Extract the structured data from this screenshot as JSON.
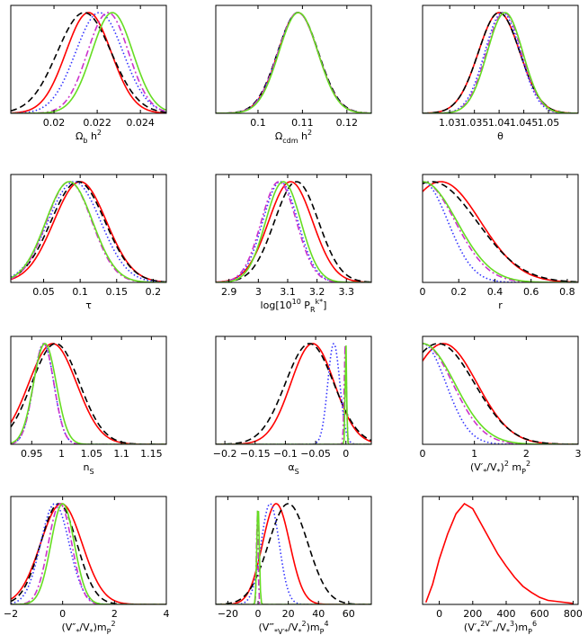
{
  "line_styles": [
    {
      "name": "red-solid",
      "color": "#ff0000",
      "dash": "none"
    },
    {
      "name": "black-dashed",
      "color": "#000000",
      "dash": "7,4"
    },
    {
      "name": "blue-dotted",
      "color": "#3333ff",
      "dash": "1.5,2.5"
    },
    {
      "name": "magenta-dashdot",
      "color": "#cc33cc",
      "dash": "7,3,2,3"
    },
    {
      "name": "green-solid",
      "color": "#66dd22",
      "dash": "none"
    }
  ],
  "chart_data": [
    {
      "type": "line",
      "id": "omega-b",
      "xlabel": "Ω_b h^2",
      "xlim": [
        0.018,
        0.0252
      ],
      "ticks": [
        {
          "v": 0.02,
          "label": "0.02"
        },
        {
          "v": 0.022,
          "label": "0.022"
        },
        {
          "v": 0.024,
          "label": "0.024"
        }
      ],
      "series": [
        {
          "style": "red-solid",
          "gauss": [
            0.0216,
            0.00105
          ]
        },
        {
          "style": "black-dashed",
          "gauss": [
            0.0214,
            0.00125
          ]
        },
        {
          "style": "blue-dotted",
          "gauss": [
            0.0221,
            0.0011
          ]
        },
        {
          "style": "magenta-dashdot",
          "gauss": [
            0.0225,
            0.00095
          ]
        },
        {
          "style": "green-solid",
          "gauss": [
            0.0227,
            0.00095
          ]
        }
      ]
    },
    {
      "type": "line",
      "id": "omega-cdm",
      "xlabel": "Ω_cdm h^2",
      "xlim": [
        0.0905,
        0.1255
      ],
      "ticks": [
        {
          "v": 0.1,
          "label": "0.1"
        },
        {
          "v": 0.11,
          "label": "0.11"
        },
        {
          "v": 0.12,
          "label": "0.12"
        }
      ],
      "series": [
        {
          "style": "red-solid",
          "gauss": [
            0.109,
            0.0045
          ]
        },
        {
          "style": "black-dashed",
          "gauss": [
            0.109,
            0.0046
          ]
        },
        {
          "style": "blue-dotted",
          "gauss": [
            0.109,
            0.0045
          ]
        },
        {
          "style": "magenta-dashdot",
          "gauss": [
            0.109,
            0.0045
          ]
        },
        {
          "style": "green-solid",
          "gauss": [
            0.1091,
            0.0044
          ]
        }
      ]
    },
    {
      "type": "line",
      "id": "theta",
      "xlabel": "θ",
      "xlim": [
        1.0245,
        1.056
      ],
      "ticks": [
        {
          "v": 1.03,
          "label": "1.03"
        },
        {
          "v": 1.035,
          "label": "1.035"
        },
        {
          "v": 1.04,
          "label": "1.04"
        },
        {
          "v": 1.045,
          "label": "1.045"
        },
        {
          "v": 1.05,
          "label": "1.05"
        }
      ],
      "series": [
        {
          "style": "red-solid",
          "gauss": [
            1.04,
            0.0042
          ]
        },
        {
          "style": "black-dashed",
          "gauss": [
            1.04,
            0.0042
          ]
        },
        {
          "style": "blue-dotted",
          "gauss": [
            1.0407,
            0.0036
          ]
        },
        {
          "style": "magenta-dashdot",
          "gauss": [
            1.041,
            0.0036
          ]
        },
        {
          "style": "green-solid",
          "gauss": [
            1.0412,
            0.0036
          ]
        }
      ]
    },
    {
      "type": "line",
      "id": "tau",
      "xlabel": "τ",
      "xlim": [
        0.005,
        0.218
      ],
      "ticks": [
        {
          "v": 0.05,
          "label": "0.05"
        },
        {
          "v": 0.1,
          "label": "0.1"
        },
        {
          "v": 0.15,
          "label": "0.15"
        },
        {
          "v": 0.2,
          "label": "0.2"
        }
      ],
      "series": [
        {
          "style": "red-solid",
          "gauss": [
            0.1,
            0.036
          ]
        },
        {
          "style": "black-dashed",
          "gauss": [
            0.097,
            0.037
          ]
        },
        {
          "style": "blue-dotted",
          "gauss": [
            0.092,
            0.036
          ]
        },
        {
          "style": "magenta-dashdot",
          "gauss": [
            0.085,
            0.031
          ]
        },
        {
          "style": "green-solid",
          "gauss": [
            0.085,
            0.032
          ]
        }
      ]
    },
    {
      "type": "line",
      "id": "log-pr",
      "xlabel": "log[10^10 P_R^k*]",
      "xlim": [
        2.855,
        3.385
      ],
      "ticks": [
        {
          "v": 2.9,
          "label": "2.9"
        },
        {
          "v": 3.0,
          "label": "3"
        },
        {
          "v": 3.1,
          "label": "3.1"
        },
        {
          "v": 3.2,
          "label": "3.2"
        },
        {
          "v": 3.3,
          "label": "3.3"
        }
      ],
      "series": [
        {
          "style": "red-solid",
          "gauss": [
            3.11,
            0.075
          ]
        },
        {
          "style": "black-dashed",
          "gauss": [
            3.13,
            0.075
          ]
        },
        {
          "style": "blue-dotted",
          "gauss": [
            3.075,
            0.06
          ]
        },
        {
          "style": "magenta-dashdot",
          "gauss": [
            3.07,
            0.06
          ]
        },
        {
          "style": "green-solid",
          "gauss": [
            3.085,
            0.06
          ]
        }
      ]
    },
    {
      "type": "line",
      "id": "r",
      "xlabel": "r",
      "xlim": [
        0.0,
        0.86
      ],
      "ticks": [
        {
          "v": 0,
          "label": "0"
        },
        {
          "v": 0.2,
          "label": "0.2"
        },
        {
          "v": 0.4,
          "label": "0.4"
        },
        {
          "v": 0.6,
          "label": "0.6"
        },
        {
          "v": 0.8,
          "label": "0.8"
        }
      ],
      "series": [
        {
          "style": "red-solid",
          "gauss": [
            0.1,
            0.22
          ]
        },
        {
          "style": "black-dashed",
          "gauss": [
            0.05,
            0.25
          ]
        },
        {
          "style": "blue-dotted",
          "gauss": [
            0.0,
            0.14
          ]
        },
        {
          "style": "magenta-dashdot",
          "gauss": [
            0.0,
            0.18
          ]
        },
        {
          "style": "green-solid",
          "gauss": [
            0.0,
            0.19
          ]
        }
      ]
    },
    {
      "type": "line",
      "id": "ns",
      "xlabel": "n_S",
      "xlim": [
        0.915,
        1.175
      ],
      "ticks": [
        {
          "v": 0.95,
          "label": "0.95"
        },
        {
          "v": 1.0,
          "label": "1"
        },
        {
          "v": 1.05,
          "label": "1.05"
        },
        {
          "v": 1.1,
          "label": "1.1"
        },
        {
          "v": 1.15,
          "label": "1.15"
        }
      ],
      "series": [
        {
          "style": "red-solid",
          "gauss": [
            0.985,
            0.04
          ]
        },
        {
          "style": "black-dashed",
          "gauss": [
            0.99,
            0.04
          ]
        },
        {
          "style": "blue-dotted",
          "gauss": [
            0.97,
            0.017
          ]
        },
        {
          "style": "magenta-dashdot",
          "gauss": [
            0.97,
            0.017
          ]
        },
        {
          "style": "green-solid",
          "gauss": [
            0.972,
            0.019
          ]
        }
      ]
    },
    {
      "type": "line",
      "id": "alpha-s",
      "xlabel": "α_S",
      "xlim": [
        -0.215,
        0.042
      ],
      "ticks": [
        {
          "v": -0.2,
          "label": "−0.2"
        },
        {
          "v": -0.15,
          "label": "−0.15"
        },
        {
          "v": -0.1,
          "label": "−0.1"
        },
        {
          "v": -0.05,
          "label": "−0.05"
        },
        {
          "v": 0,
          "label": "0"
        }
      ],
      "series": [
        {
          "style": "red-solid",
          "gauss": [
            -0.055,
            0.036
          ]
        },
        {
          "style": "black-dashed",
          "gauss": [
            -0.06,
            0.04
          ]
        },
        {
          "style": "blue-dotted",
          "gauss": [
            -0.02,
            0.01
          ]
        },
        {
          "style": "magenta-dashdot",
          "gauss": [
            -0.001,
            0.0018
          ]
        },
        {
          "style": "green-solid",
          "gauss": [
            0.0,
            0.0012
          ]
        }
      ]
    },
    {
      "type": "line",
      "id": "v1",
      "xlabel": "(V′_*/V_*)^2 m_P^2",
      "xlim": [
        0.0,
        3.0
      ],
      "ticks": [
        {
          "v": 0,
          "label": "0"
        },
        {
          "v": 1,
          "label": "1"
        },
        {
          "v": 2,
          "label": "2"
        },
        {
          "v": 3,
          "label": "3"
        }
      ],
      "series": [
        {
          "style": "red-solid",
          "gauss": [
            0.4,
            0.65
          ]
        },
        {
          "style": "black-dashed",
          "gauss": [
            0.3,
            0.7
          ]
        },
        {
          "style": "blue-dotted",
          "gauss": [
            0.0,
            0.45
          ]
        },
        {
          "style": "magenta-dashdot",
          "gauss": [
            0.0,
            0.58
          ]
        },
        {
          "style": "green-solid",
          "gauss": [
            0.0,
            0.62
          ]
        }
      ]
    },
    {
      "type": "line",
      "id": "v2",
      "xlabel": "(V″_*/V_*)m_P^2",
      "xlim": [
        -2.0,
        4.0
      ],
      "ticks": [
        {
          "v": -2,
          "label": "−2"
        },
        {
          "v": 0,
          "label": "0"
        },
        {
          "v": 2,
          "label": "2"
        },
        {
          "v": 4,
          "label": "4"
        }
      ],
      "series": [
        {
          "style": "red-solid",
          "gauss": [
            -0.05,
            0.8
          ]
        },
        {
          "style": "black-dashed",
          "gauss": [
            -0.15,
            0.7
          ]
        },
        {
          "style": "blue-dotted",
          "gauss": [
            -0.3,
            0.55
          ]
        },
        {
          "style": "magenta-dashdot",
          "gauss": [
            -0.1,
            0.45
          ]
        },
        {
          "style": "green-solid",
          "gauss": [
            0.0,
            0.45
          ]
        }
      ]
    },
    {
      "type": "line",
      "id": "v3",
      "xlabel": "(V‴_*V′_*/V_*^2)m_P^4",
      "xlim": [
        -28,
        75
      ],
      "ticks": [
        {
          "v": -20,
          "label": "−20"
        },
        {
          "v": 0,
          "label": "0"
        },
        {
          "v": 20,
          "label": "20"
        },
        {
          "v": 40,
          "label": "40"
        },
        {
          "v": 60,
          "label": "60"
        }
      ],
      "series": [
        {
          "style": "red-solid",
          "gauss": [
            12,
            9
          ]
        },
        {
          "style": "black-dashed",
          "gauss": [
            20,
            13
          ]
        },
        {
          "style": "blue-dotted",
          "gauss": [
            8,
            6
          ]
        },
        {
          "style": "magenta-dashdot",
          "gauss": [
            -0.5,
            0.5
          ]
        },
        {
          "style": "green-solid",
          "gauss": [
            0.0,
            0.8
          ]
        }
      ]
    },
    {
      "type": "line",
      "id": "v4",
      "xlabel": "(V′_*^2V″_*/V_*^3)m_P^6",
      "xlim": [
        -100,
        830
      ],
      "ticks": [
        {
          "v": 0,
          "label": "0"
        },
        {
          "v": 200,
          "label": "200"
        },
        {
          "v": 400,
          "label": "400"
        },
        {
          "v": 600,
          "label": "600"
        },
        {
          "v": 800,
          "label": "800"
        }
      ],
      "series": [
        {
          "style": "red-solid",
          "points": [
            [
              -80,
              0.02
            ],
            [
              -40,
              0.2
            ],
            [
              0,
              0.45
            ],
            [
              50,
              0.7
            ],
            [
              100,
              0.9
            ],
            [
              150,
              1.0
            ],
            [
              200,
              0.95
            ],
            [
              250,
              0.8
            ],
            [
              300,
              0.65
            ],
            [
              350,
              0.5
            ],
            [
              400,
              0.38
            ],
            [
              450,
              0.27
            ],
            [
              500,
              0.18
            ],
            [
              550,
              0.12
            ],
            [
              600,
              0.07
            ],
            [
              650,
              0.04
            ],
            [
              700,
              0.03
            ],
            [
              750,
              0.02
            ],
            [
              800,
              0.01
            ]
          ]
        }
      ]
    }
  ]
}
